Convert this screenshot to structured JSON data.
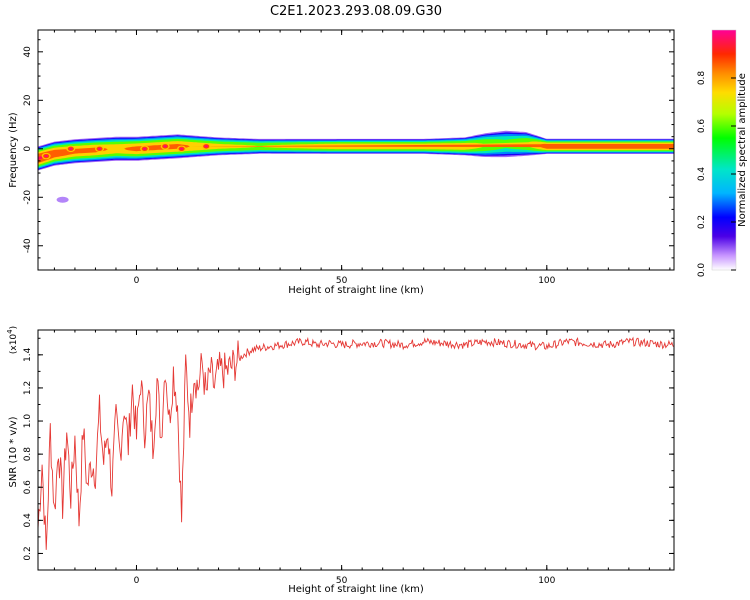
{
  "figure_title": "C2E1.2023.293.08.09.G30",
  "chart_data": [
    {
      "type": "heatmap",
      "title": "",
      "xlabel": "Height of straight line (km)",
      "ylabel": "Frequency (Hz)",
      "xlim": [
        -24,
        131
      ],
      "ylim": [
        -50,
        49
      ],
      "xticks": [
        0,
        50,
        100
      ],
      "yticks": [
        -40,
        -20,
        0,
        20,
        40
      ],
      "grid": false,
      "colorbar": {
        "label": "Normalized spectral amplitude",
        "range": [
          0,
          1
        ],
        "ticks": [
          0.0,
          0.2,
          0.4,
          0.6,
          0.8
        ],
        "tick_labels": [
          "0.0",
          "0.2",
          "0.4",
          "0.6",
          "0.8"
        ],
        "colors": [
          "#ffffff",
          "#c896ff",
          "#4b00e6",
          "#0000ff",
          "#00b4ff",
          "#00e6c8",
          "#00ff00",
          "#b4ff00",
          "#ffdc00",
          "#ff8c00",
          "#ff2800",
          "#ff0096"
        ]
      },
      "ridge": {
        "description": "Narrow-band signal near 0 Hz across height",
        "x": [
          -24,
          -20,
          -15,
          -10,
          -5,
          0,
          5,
          10,
          15,
          20,
          30,
          40,
          50,
          60,
          70,
          80,
          85,
          90,
          95,
          100,
          105,
          110,
          120,
          131
        ],
        "center_hz": [
          -4,
          -2,
          -1,
          -0.5,
          0,
          0,
          0.5,
          1,
          1,
          1,
          1,
          1,
          1,
          1,
          1,
          1,
          1.5,
          2,
          2,
          1,
          1,
          1,
          1,
          1
        ],
        "half_width_hz": [
          4,
          4,
          4,
          4,
          4,
          4,
          4,
          4,
          3.5,
          3,
          2.5,
          2.5,
          2.5,
          2.5,
          2.5,
          3,
          4,
          4.5,
          4,
          2.5,
          2.5,
          2.5,
          2.5,
          2.5
        ],
        "peak_amplitude": [
          0.95,
          0.9,
          0.85,
          0.85,
          0.8,
          0.85,
          0.85,
          0.85,
          0.8,
          0.75,
          0.7,
          0.75,
          0.8,
          0.8,
          0.8,
          0.8,
          0.7,
          0.6,
          0.7,
          0.9,
          0.9,
          0.9,
          0.9,
          0.9
        ]
      },
      "spots": [
        {
          "x": -16,
          "hz": 0,
          "amp": 0.95
        },
        {
          "x": -9,
          "hz": 0,
          "amp": 0.95
        },
        {
          "x": 2,
          "hz": 0,
          "amp": 0.95
        },
        {
          "x": 7,
          "hz": 1,
          "amp": 0.95
        },
        {
          "x": 11,
          "hz": 0,
          "amp": 0.95
        },
        {
          "x": 17,
          "hz": 1,
          "amp": 0.95
        },
        {
          "x": -22,
          "hz": -3,
          "amp": 0.95
        }
      ],
      "faint_blobs": [
        {
          "x": -18,
          "hz": -21,
          "amp": 0.12
        }
      ]
    },
    {
      "type": "line",
      "title": "",
      "xlabel": "Height of straight line (km)",
      "ylabel": "SNR (10 * v/v)",
      "y_multiplier": "(x10",
      "y_multiplier_exp": "4",
      "y_multiplier_close": ")",
      "xlim": [
        -24,
        131
      ],
      "ylim": [
        0.1,
        1.55
      ],
      "xticks": [
        0,
        50,
        100
      ],
      "yticks": [
        0.2,
        0.4,
        0.6,
        0.8,
        1.0,
        1.2,
        1.4
      ],
      "ytick_labels": [
        "0.2",
        "0.4",
        "0.6",
        "0.8",
        "1.0",
        "1.2",
        "1.4"
      ],
      "grid": false,
      "series": [
        {
          "color": "#e53935",
          "x": [
            -24,
            -23,
            -22,
            -21,
            -20,
            -19,
            -18,
            -17,
            -16,
            -15,
            -14,
            -13,
            -12,
            -11,
            -10,
            -9,
            -8,
            -7,
            -6,
            -5,
            -4,
            -3,
            -2,
            -1,
            0,
            1,
            2,
            3,
            4,
            5,
            6,
            7,
            8,
            9,
            10,
            11,
            12,
            13,
            14,
            15,
            16,
            17,
            18,
            19,
            20,
            22,
            24,
            26,
            28,
            30,
            32,
            35,
            38,
            41,
            44,
            47,
            50,
            55,
            60,
            65,
            70,
            75,
            80,
            85,
            90,
            95,
            100,
            105,
            110,
            115,
            120,
            125,
            131
          ],
          "values": [
            0.35,
            0.75,
            0.2,
            0.95,
            0.45,
            0.85,
            0.5,
            0.95,
            0.55,
            0.9,
            0.4,
            0.95,
            0.6,
            0.75,
            0.7,
            1.05,
            0.75,
            0.95,
            0.6,
            1.0,
            0.8,
            1.1,
            0.85,
            1.2,
            0.9,
            1.25,
            0.95,
            1.15,
            0.85,
            1.25,
            0.9,
            1.35,
            1.0,
            1.3,
            1.1,
            0.4,
            1.35,
            1.0,
            1.3,
            1.2,
            1.35,
            1.15,
            1.3,
            1.2,
            1.3,
            1.3,
            1.35,
            1.4,
            1.43,
            1.44,
            1.45,
            1.46,
            1.47,
            1.48,
            1.46,
            1.47,
            1.46,
            1.47,
            1.47,
            1.46,
            1.48,
            1.47,
            1.46,
            1.48,
            1.47,
            1.46,
            1.45,
            1.48,
            1.47,
            1.46,
            1.48,
            1.47,
            1.46
          ]
        }
      ]
    }
  ]
}
